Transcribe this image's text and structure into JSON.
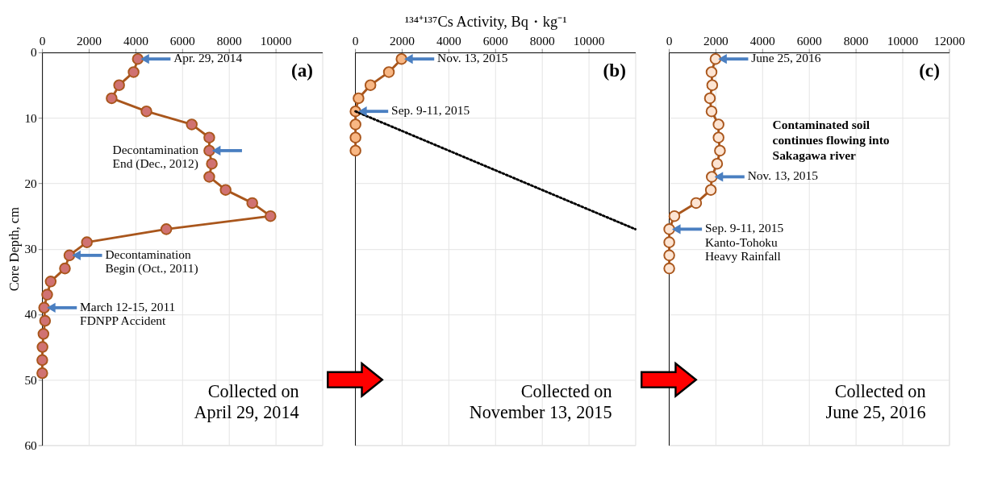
{
  "chart_data": [
    {
      "type": "line",
      "ylabel": "Core Depth, cm",
      "xlim": [
        0,
        12000
      ],
      "xticks": [
        0,
        2000,
        4000,
        6000,
        8000,
        10000
      ],
      "ylim": [
        60,
        0
      ],
      "yticks": [
        0,
        10,
        20,
        30,
        40,
        50,
        60
      ],
      "grid": true,
      "marker": "circle",
      "line_style": "solid",
      "series": [
        {
          "color": "#a9561c",
          "x": [
            4100,
            3920,
            3300,
            2980,
            4470,
            6410,
            7160,
            7160,
            7270,
            7160,
            7860,
            9000,
            9780,
            5320,
            1920,
            1170,
            980,
            370,
            220,
            90,
            130,
            60,
            20,
            10,
            10
          ],
          "values": [
            1,
            3,
            5,
            7,
            9,
            11,
            13,
            15,
            17,
            19,
            21,
            23,
            25,
            27,
            29,
            31,
            33,
            35,
            37,
            39,
            41,
            43,
            45,
            47,
            49
          ],
          "colors": [
            "#d07272",
            "#d07272",
            "#d07272",
            "#d07272",
            "#d07272",
            "#d07272",
            "#d07272",
            "#d07272",
            "#d07272",
            "#d07272",
            "#d07272",
            "#d07272",
            "#d07272",
            "#d07272",
            "#d07272",
            "#d07272",
            "#d07272",
            "#d07272",
            "#d07272",
            "#d07272",
            "#d07272",
            "#d07272",
            "#d07272",
            "#d07272",
            "#d07272"
          ]
        }
      ],
      "annotations": [
        {
          "text": "Apr. 29, 2014",
          "x": 4100,
          "y": 1
        },
        {
          "text": "Decontamination\nEnd (Dec., 2012)",
          "x": 7160,
          "y": 15
        },
        {
          "text": "Decontamination\nBegin (Oct., 2011)",
          "x": 1170,
          "y": 31
        },
        {
          "text": "March 12-15, 2011\nFDNPP Accident",
          "x": 90,
          "y": 39
        },
        "(a)",
        "Collected on\nApril 29, 2014"
      ]
    },
    {
      "type": "line",
      "xlabel": "¹³⁴⁺¹³⁷Cs Activity, Bq・kg⁻¹",
      "xlim": [
        0,
        12000
      ],
      "xticks": [
        0,
        2000,
        4000,
        6000,
        8000,
        10000
      ],
      "ylim": [
        60,
        0
      ],
      "yticks": [
        0,
        10,
        20,
        30,
        40,
        50,
        60
      ],
      "tick_labels": "x",
      "grid": true,
      "marker": "circle",
      "line_style": "solid",
      "series": [
        {
          "color": "#a9561c",
          "x": [
            1990,
            1450,
            660,
            150,
            20,
            20,
            20,
            20
          ],
          "values": [
            1,
            3,
            5,
            7,
            9,
            11,
            13,
            15
          ],
          "colors": [
            "#f8b784",
            "#f8b784",
            "#f8b784",
            "#f8b784",
            "#f8b784",
            "#f8b784",
            "#f8b784",
            "#f8b784"
          ]
        },
        {
          "type": "line",
          "color": "#000000",
          "marker": "none",
          "line_style": "dotted",
          "x": [
            20,
            12000
          ],
          "values": [
            9,
            27
          ]
        }
      ],
      "annotations": [
        {
          "text": "Nov. 13, 2015",
          "x": 1990,
          "y": 1
        },
        {
          "text": "Sep. 9-11, 2015",
          "x": 20,
          "y": 9
        },
        "(b)",
        "Collected on\nNovember 13, 2015"
      ]
    },
    {
      "type": "line",
      "xlim": [
        0,
        12000
      ],
      "xticks": [
        0,
        2000,
        4000,
        6000,
        8000,
        10000,
        12000
      ],
      "ylim": [
        60,
        0
      ],
      "yticks": [
        0,
        10,
        20,
        30,
        40,
        50,
        60
      ],
      "tick_labels": "x",
      "grid": true,
      "marker": "circle",
      "line_style": "solid",
      "series": [
        {
          "color": "#a9561c",
          "x": [
            2000,
            1830,
            1860,
            1760,
            1830,
            2130,
            2130,
            2190,
            2070,
            1840,
            1800,
            1170,
            240,
            20,
            20,
            20,
            20
          ],
          "values": [
            1,
            3,
            5,
            7,
            9,
            11,
            13,
            15,
            17,
            19,
            21,
            23,
            25,
            27,
            29,
            31,
            33
          ],
          "colors": [
            "#fde4d2",
            "#fde4d2",
            "#fde4d2",
            "#fde4d2",
            "#fde4d2",
            "#fde4d2",
            "#fde4d2",
            "#fde4d2",
            "#fde4d2",
            "#fde4d2",
            "#fde4d2",
            "#fde4d2",
            "#fde4d2",
            "#fde4d2",
            "#fde4d2",
            "#fde4d2",
            "#fde4d2"
          ]
        }
      ],
      "annotations": [
        {
          "text": "June 25, 2016",
          "x": 2000,
          "y": 1
        },
        {
          "text": "Nov. 13, 2015",
          "x": 1840,
          "y": 19
        },
        {
          "text": "Sep. 9-11, 2015\nKanto-Tohoku\nHeavy Rainfall",
          "x": 20,
          "y": 27
        },
        "(c)",
        "Contaminated soil\ncontinues flowing into\nSakagawa river",
        "Collected on\nJune 25, 2016"
      ]
    }
  ]
}
